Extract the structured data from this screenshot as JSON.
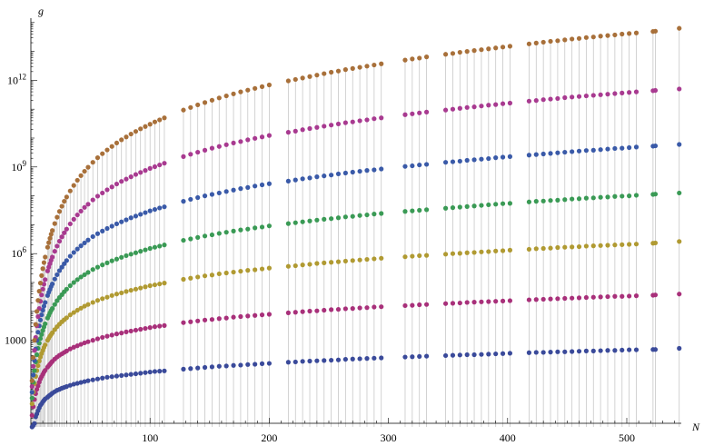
{
  "chart_data": {
    "type": "scatter",
    "xlabel": "N",
    "ylabel": "g",
    "y_scale": "log",
    "xlim": [
      0,
      550
    ],
    "ylim_log10": [
      0,
      14.3
    ],
    "x_ticks": [
      {
        "value": 100,
        "label": "100"
      },
      {
        "value": 200,
        "label": "200"
      },
      {
        "value": 300,
        "label": "300"
      },
      {
        "value": 400,
        "label": "400"
      },
      {
        "value": 500,
        "label": "500"
      }
    ],
    "y_ticks": [
      {
        "value_log10": 3,
        "base": "1000",
        "exp": ""
      },
      {
        "value_log10": 6,
        "base": "10",
        "exp": "6"
      },
      {
        "value_log10": 9,
        "base": "10",
        "exp": "9"
      },
      {
        "value_log10": 12,
        "base": "10",
        "exp": "12"
      }
    ],
    "drop_lines": true,
    "x": [
      1,
      2,
      3,
      4,
      5,
      6,
      7,
      8,
      9,
      10,
      11,
      12,
      14,
      15,
      16,
      17,
      18,
      20,
      22,
      24,
      26,
      28,
      30,
      33,
      36,
      39,
      42,
      45,
      48,
      52,
      56,
      60,
      64,
      68,
      72,
      76,
      80,
      84,
      88,
      92,
      96,
      100,
      104,
      108,
      112,
      128,
      134,
      140,
      146,
      152,
      158,
      164,
      170,
      176,
      182,
      188,
      194,
      200,
      216,
      222,
      228,
      234,
      240,
      246,
      252,
      258,
      264,
      270,
      276,
      282,
      288,
      294,
      314,
      320,
      326,
      332,
      348,
      354,
      360,
      366,
      372,
      378,
      384,
      390,
      396,
      402,
      418,
      424,
      430,
      436,
      442,
      448,
      454,
      460,
      466,
      472,
      478,
      484,
      490,
      496,
      502,
      508,
      522,
      524,
      544
    ],
    "series": [
      {
        "color": "#3a4a9a",
        "log10_values": [
          0,
          0.05,
          0.12,
          0.35,
          0.45,
          0.56,
          0.66,
          0.75,
          0.8,
          0.87,
          0.92,
          0.97,
          1.03,
          1.07,
          1.1,
          1.13,
          1.17,
          1.22,
          1.27,
          1.3,
          1.34,
          1.37,
          1.4,
          1.44,
          1.48,
          1.51,
          1.54,
          1.57,
          1.6,
          1.63,
          1.66,
          1.69,
          1.72,
          1.74,
          1.76,
          1.78,
          1.8,
          1.82,
          1.84,
          1.86,
          1.88,
          1.9,
          1.92,
          1.93,
          1.94,
          2.0,
          2.02,
          2.04,
          2.06,
          2.08,
          2.1,
          2.11,
          2.13,
          2.14,
          2.16,
          2.17,
          2.19,
          2.2,
          2.24,
          2.25,
          2.27,
          2.28,
          2.29,
          2.3,
          2.31,
          2.32,
          2.34,
          2.35,
          2.36,
          2.37,
          2.38,
          2.39,
          2.42,
          2.43,
          2.44,
          2.45,
          2.47,
          2.48,
          2.49,
          2.5,
          2.5,
          2.51,
          2.52,
          2.53,
          2.54,
          2.55,
          2.57,
          2.58,
          2.58,
          2.59,
          2.6,
          2.6,
          2.61,
          2.62,
          2.63,
          2.63,
          2.64,
          2.65,
          2.65,
          2.66,
          2.67,
          2.67,
          2.68,
          2.68,
          2.72
        ]
      },
      {
        "color": "#a8307a",
        "log10_values": [
          0.4,
          0.7,
          0.95,
          1.15,
          1.3,
          1.42,
          1.55,
          1.66,
          1.74,
          1.82,
          1.9,
          1.96,
          2.07,
          2.12,
          2.17,
          2.22,
          2.27,
          2.35,
          2.42,
          2.48,
          2.53,
          2.58,
          2.63,
          2.7,
          2.76,
          2.81,
          2.86,
          2.91,
          2.95,
          3.0,
          3.05,
          3.1,
          3.14,
          3.18,
          3.22,
          3.25,
          3.29,
          3.32,
          3.35,
          3.38,
          3.41,
          3.44,
          3.47,
          3.49,
          3.51,
          3.61,
          3.64,
          3.67,
          3.7,
          3.72,
          3.75,
          3.77,
          3.8,
          3.82,
          3.84,
          3.86,
          3.88,
          3.9,
          3.95,
          3.97,
          3.99,
          4.01,
          4.02,
          4.04,
          4.06,
          4.07,
          4.09,
          4.1,
          4.12,
          4.13,
          4.15,
          4.16,
          4.2,
          4.21,
          4.23,
          4.24,
          4.27,
          4.28,
          4.29,
          4.31,
          4.32,
          4.33,
          4.34,
          4.35,
          4.36,
          4.37,
          4.4,
          4.41,
          4.42,
          4.43,
          4.44,
          4.45,
          4.46,
          4.47,
          4.48,
          4.49,
          4.5,
          4.51,
          4.52,
          4.52,
          4.53,
          4.54,
          4.56,
          4.57,
          4.6
        ]
      },
      {
        "color": "#b09a32",
        "log10_values": [
          0.8,
          1.2,
          1.5,
          1.75,
          1.95,
          2.12,
          2.28,
          2.42,
          2.54,
          2.65,
          2.75,
          2.84,
          3.0,
          3.07,
          3.14,
          3.2,
          3.26,
          3.37,
          3.47,
          3.56,
          3.64,
          3.71,
          3.78,
          3.88,
          3.96,
          4.04,
          4.11,
          4.18,
          4.24,
          4.31,
          4.38,
          4.44,
          4.49,
          4.55,
          4.6,
          4.64,
          4.69,
          4.73,
          4.77,
          4.81,
          4.85,
          4.89,
          4.92,
          4.95,
          4.98,
          5.11,
          5.15,
          5.19,
          5.23,
          5.26,
          5.3,
          5.33,
          5.36,
          5.39,
          5.42,
          5.44,
          5.47,
          5.5,
          5.56,
          5.58,
          5.61,
          5.63,
          5.66,
          5.68,
          5.7,
          5.72,
          5.74,
          5.76,
          5.78,
          5.8,
          5.82,
          5.84,
          5.89,
          5.91,
          5.93,
          5.94,
          5.98,
          6.0,
          6.01,
          6.03,
          6.04,
          6.06,
          6.07,
          6.09,
          6.1,
          6.12,
          6.15,
          6.17,
          6.18,
          6.19,
          6.21,
          6.22,
          6.23,
          6.24,
          6.26,
          6.27,
          6.28,
          6.29,
          6.3,
          6.31,
          6.32,
          6.33,
          6.36,
          6.37,
          6.42
        ]
      },
      {
        "color": "#3a9a55",
        "log10_values": [
          1.0,
          1.55,
          1.95,
          2.25,
          2.5,
          2.72,
          2.9,
          3.06,
          3.2,
          3.34,
          3.46,
          3.57,
          3.77,
          3.86,
          3.95,
          4.03,
          4.1,
          4.24,
          4.37,
          4.48,
          4.58,
          4.68,
          4.77,
          4.89,
          5.0,
          5.1,
          5.19,
          5.27,
          5.35,
          5.45,
          5.53,
          5.61,
          5.68,
          5.75,
          5.81,
          5.87,
          5.93,
          5.98,
          6.03,
          6.08,
          6.13,
          6.18,
          6.22,
          6.26,
          6.3,
          6.46,
          6.51,
          6.56,
          6.61,
          6.65,
          6.7,
          6.74,
          6.78,
          6.82,
          6.85,
          6.89,
          6.92,
          6.96,
          7.04,
          7.07,
          7.1,
          7.13,
          7.16,
          7.19,
          7.21,
          7.24,
          7.27,
          7.29,
          7.32,
          7.34,
          7.37,
          7.39,
          7.46,
          7.48,
          7.5,
          7.52,
          7.57,
          7.59,
          7.61,
          7.63,
          7.65,
          7.67,
          7.69,
          7.71,
          7.73,
          7.74,
          7.79,
          7.81,
          7.82,
          7.84,
          7.85,
          7.87,
          7.89,
          7.9,
          7.92,
          7.93,
          7.95,
          7.96,
          7.98,
          7.99,
          8.0,
          8.02,
          8.05,
          8.06,
          8.1
        ]
      },
      {
        "color": "#3a5aa8",
        "log10_values": [
          1.2,
          1.8,
          2.3,
          2.7,
          3.0,
          3.28,
          3.5,
          3.7,
          3.88,
          4.04,
          4.18,
          4.31,
          4.55,
          4.66,
          4.76,
          4.86,
          4.95,
          5.12,
          5.27,
          5.41,
          5.53,
          5.65,
          5.76,
          5.91,
          6.04,
          6.16,
          6.27,
          6.37,
          6.47,
          6.59,
          6.69,
          6.78,
          6.87,
          6.95,
          7.03,
          7.1,
          7.17,
          7.24,
          7.3,
          7.36,
          7.42,
          7.48,
          7.53,
          7.58,
          7.62,
          7.81,
          7.88,
          7.94,
          8.0,
          8.05,
          8.1,
          8.15,
          8.2,
          8.25,
          8.29,
          8.34,
          8.38,
          8.42,
          8.51,
          8.55,
          8.59,
          8.62,
          8.66,
          8.69,
          8.72,
          8.76,
          8.79,
          8.82,
          8.85,
          8.88,
          8.9,
          8.93,
          9.02,
          9.04,
          9.07,
          9.09,
          9.16,
          9.18,
          9.2,
          9.23,
          9.25,
          9.27,
          9.29,
          9.32,
          9.34,
          9.36,
          9.41,
          9.43,
          9.45,
          9.47,
          9.49,
          9.51,
          9.53,
          9.55,
          9.57,
          9.58,
          9.6,
          9.62,
          9.64,
          9.65,
          9.67,
          9.69,
          9.72,
          9.73,
          9.78
        ]
      },
      {
        "color": "#a83a90",
        "log10_values": [
          1.4,
          2.1,
          2.65,
          3.1,
          3.5,
          3.82,
          4.1,
          4.35,
          4.57,
          4.77,
          4.94,
          5.1,
          5.4,
          5.53,
          5.65,
          5.77,
          5.88,
          6.08,
          6.26,
          6.43,
          6.58,
          6.72,
          6.85,
          7.03,
          7.19,
          7.34,
          7.47,
          7.6,
          7.71,
          7.86,
          7.99,
          8.1,
          8.21,
          8.31,
          8.41,
          8.5,
          8.58,
          8.66,
          8.74,
          8.81,
          8.88,
          8.95,
          9.01,
          9.07,
          9.13,
          9.36,
          9.44,
          9.51,
          9.58,
          9.65,
          9.71,
          9.77,
          9.83,
          9.88,
          9.94,
          9.99,
          10.04,
          10.09,
          10.2,
          10.24,
          10.29,
          10.33,
          10.37,
          10.41,
          10.45,
          10.49,
          10.53,
          10.56,
          10.6,
          10.63,
          10.67,
          10.7,
          10.81,
          10.84,
          10.87,
          10.9,
          10.97,
          11.0,
          11.03,
          11.06,
          11.08,
          11.11,
          11.14,
          11.16,
          11.19,
          11.21,
          11.28,
          11.3,
          11.33,
          11.35,
          11.37,
          11.4,
          11.42,
          11.44,
          11.46,
          11.48,
          11.5,
          11.52,
          11.54,
          11.56,
          11.58,
          11.6,
          11.64,
          11.65,
          11.7
        ]
      },
      {
        "color": "#a8703a",
        "log10_values": [
          1.6,
          2.4,
          3.0,
          3.55,
          4.0,
          4.38,
          4.7,
          4.98,
          5.24,
          5.48,
          5.69,
          5.88,
          6.22,
          6.38,
          6.53,
          6.67,
          6.8,
          7.04,
          7.26,
          7.46,
          7.64,
          7.81,
          7.96,
          8.17,
          8.36,
          8.54,
          8.7,
          8.85,
          8.99,
          9.16,
          9.32,
          9.46,
          9.59,
          9.71,
          9.83,
          9.94,
          10.04,
          10.14,
          10.23,
          10.32,
          10.4,
          10.48,
          10.56,
          10.63,
          10.7,
          10.97,
          11.06,
          11.15,
          11.23,
          11.31,
          11.39,
          11.46,
          11.53,
          11.6,
          11.66,
          11.72,
          11.78,
          11.84,
          11.98,
          12.03,
          12.08,
          12.13,
          12.18,
          12.23,
          12.28,
          12.32,
          12.37,
          12.41,
          12.45,
          12.49,
          12.53,
          12.57,
          12.7,
          12.74,
          12.77,
          12.81,
          12.9,
          12.93,
          12.97,
          13.0,
          13.03,
          13.06,
          13.09,
          13.12,
          13.15,
          13.18,
          13.26,
          13.29,
          13.32,
          13.35,
          13.37,
          13.4,
          13.43,
          13.45,
          13.48,
          13.5,
          13.53,
          13.55,
          13.57,
          13.6,
          13.62,
          13.64,
          13.69,
          13.7,
          13.8
        ]
      }
    ]
  }
}
